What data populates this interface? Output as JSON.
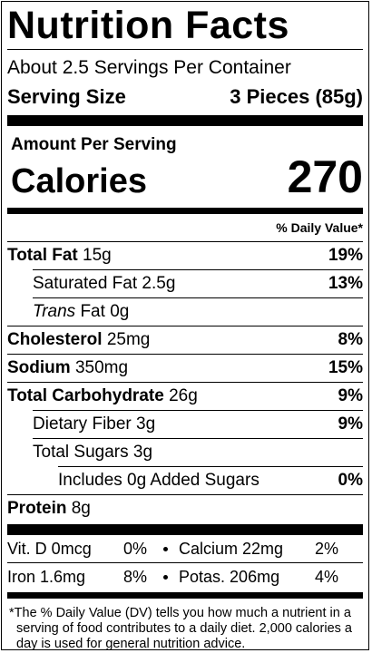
{
  "title": "Nutrition Facts",
  "servings_per_container": "About 2.5 Servings Per Container",
  "serving_size": {
    "label": "Serving Size",
    "value": "3 Pieces (85g)"
  },
  "amount_per_serving": "Amount Per Serving",
  "calories": {
    "label": "Calories",
    "value": "270"
  },
  "daily_value_header": "% Daily Value*",
  "nutrients": [
    {
      "name": "Total Fat",
      "amount": "15g",
      "dv": "19%"
    },
    {
      "name": "Saturated Fat",
      "amount": "2.5g",
      "dv": "13%"
    },
    {
      "name": "Trans",
      "rest": "Fat",
      "amount": "0g"
    },
    {
      "name": "Cholesterol",
      "amount": "25mg",
      "dv": "8%"
    },
    {
      "name": "Sodium",
      "amount": "350mg",
      "dv": "15%"
    },
    {
      "name": "Total Carbohydrate",
      "amount": "26g",
      "dv": "9%"
    },
    {
      "name": "Dietary Fiber",
      "amount": "3g",
      "dv": "9%"
    },
    {
      "name": "Total Sugars",
      "amount": "3g"
    },
    {
      "name": "Includes 0g Added Sugars",
      "dv": "0%"
    },
    {
      "name": "Protein",
      "amount": "8g"
    }
  ],
  "vitamins": [
    [
      {
        "name": "Vit. D 0mcg",
        "dv": "0%"
      },
      {
        "name": "Calcium 22mg",
        "dv": "2%"
      }
    ],
    [
      {
        "name": "Iron 1.6mg",
        "dv": "8%"
      },
      {
        "name": "Potas. 206mg",
        "dv": "4%"
      }
    ]
  ],
  "footnote": "*The % Daily Value (DV) tells you how much a nutrient in a serving of food contributes to a daily diet. 2,000 calories a day is used for general nutrition advice."
}
